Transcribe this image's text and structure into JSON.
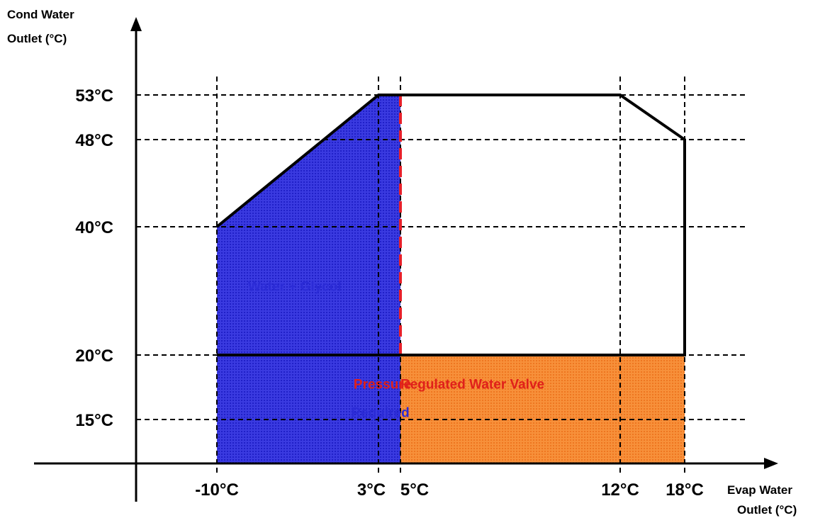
{
  "chart_data": {
    "type": "area",
    "ylabel_lines": [
      "Cond Water",
      "Outlet (°C)"
    ],
    "xlabel_lines": [
      "Evap Water",
      "Outlet (°C)"
    ],
    "x_ticks": [
      {
        "value": -10,
        "label": "-10°C"
      },
      {
        "value": 3,
        "label": "3°C"
      },
      {
        "value": 5,
        "label": "5°C"
      },
      {
        "value": 12,
        "label": "12°C"
      },
      {
        "value": 18,
        "label": "18°C"
      }
    ],
    "y_ticks": [
      {
        "value": 53,
        "label": "53°C"
      },
      {
        "value": 48,
        "label": "48°C"
      },
      {
        "value": 40,
        "label": "40°C"
      },
      {
        "value": 20,
        "label": "20°C"
      },
      {
        "value": 15,
        "label": "15°C"
      }
    ],
    "operating_envelope": [
      [
        -10,
        40
      ],
      [
        3,
        53
      ],
      [
        12,
        53
      ],
      [
        18,
        48
      ],
      [
        18,
        20
      ],
      [
        -10,
        20
      ]
    ],
    "regions": [
      {
        "name": "Water + Glycol",
        "color": "#2b2bd6",
        "polygon": [
          [
            -10,
            40
          ],
          [
            3,
            53
          ],
          [
            5,
            53
          ],
          [
            5,
            12
          ],
          [
            -10,
            12
          ]
        ],
        "label_at": [
          -7.5,
          30
        ],
        "label_color": "#2b2bd6"
      },
      {
        "name": "Regulated Water Valve",
        "color": "#f5832a",
        "polygon": [
          [
            5,
            20
          ],
          [
            18,
            20
          ],
          [
            18,
            12
          ],
          [
            5,
            12
          ]
        ],
        "label_at": [
          5,
          17.4
        ],
        "label_color": "#e0201a"
      }
    ],
    "overlay_labels": [
      {
        "text": "Pressure",
        "at": [
          1.0,
          17.4
        ],
        "color": "#e0201a"
      },
      {
        "text": "Required",
        "at": [
          0.8,
          15.2
        ],
        "color": "#2b2bd6"
      }
    ],
    "red_dashed_boundary": [
      [
        5,
        53
      ],
      [
        5,
        20
      ],
      [
        18,
        20
      ]
    ],
    "grid": true,
    "colors": {
      "envelope": "#000000",
      "red_boundary": "#e8202a",
      "grid": "#000000"
    }
  }
}
